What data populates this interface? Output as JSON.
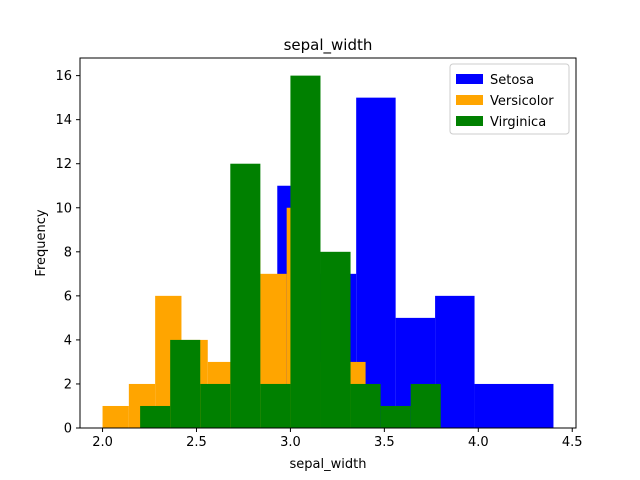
{
  "chart_data": {
    "type": "bar",
    "subtype": "histogram",
    "title": "sepal_width",
    "xlabel": "sepal_width",
    "ylabel": "Frequency",
    "xlim": [
      1.88,
      4.52
    ],
    "ylim": [
      0,
      16.8
    ],
    "xticks": [
      2.0,
      2.5,
      3.0,
      3.5,
      4.0,
      4.5
    ],
    "xtick_labels": [
      "2.0",
      "2.5",
      "3.0",
      "3.5",
      "4.0",
      "4.5"
    ],
    "yticks": [
      0,
      2,
      4,
      6,
      8,
      10,
      12,
      14,
      16
    ],
    "ytick_labels": [
      "0",
      "2",
      "4",
      "6",
      "8",
      "10",
      "12",
      "14",
      "16"
    ],
    "legend_position": "top-right",
    "grid": false,
    "series": [
      {
        "name": "Setosa",
        "color": "#0000ff",
        "bins": [
          {
            "x0": 2.3,
            "x1": 2.51,
            "count": 1
          },
          {
            "x0": 2.51,
            "x1": 2.72,
            "count": 0
          },
          {
            "x0": 2.72,
            "x1": 2.93,
            "count": 0
          },
          {
            "x0": 2.93,
            "x1": 3.14,
            "count": 11
          },
          {
            "x0": 3.14,
            "x1": 3.35,
            "count": 7
          },
          {
            "x0": 3.35,
            "x1": 3.56,
            "count": 15
          },
          {
            "x0": 3.56,
            "x1": 3.77,
            "count": 5
          },
          {
            "x0": 3.77,
            "x1": 3.98,
            "count": 6
          },
          {
            "x0": 3.98,
            "x1": 4.19,
            "count": 2
          },
          {
            "x0": 4.19,
            "x1": 4.4,
            "count": 2
          }
        ]
      },
      {
        "name": "Versicolor",
        "color": "#ffa500",
        "bins": [
          {
            "x0": 2.0,
            "x1": 2.14,
            "count": 1
          },
          {
            "x0": 2.14,
            "x1": 2.28,
            "count": 2
          },
          {
            "x0": 2.28,
            "x1": 2.42,
            "count": 6
          },
          {
            "x0": 2.42,
            "x1": 2.56,
            "count": 4
          },
          {
            "x0": 2.56,
            "x1": 2.7,
            "count": 3
          },
          {
            "x0": 2.7,
            "x1": 2.84,
            "count": 9
          },
          {
            "x0": 2.84,
            "x1": 2.98,
            "count": 7
          },
          {
            "x0": 2.98,
            "x1": 3.12,
            "count": 10
          },
          {
            "x0": 3.12,
            "x1": 3.26,
            "count": 3
          },
          {
            "x0": 3.26,
            "x1": 3.4,
            "count": 3
          }
        ]
      },
      {
        "name": "Virginica",
        "color": "#008000",
        "bins": [
          {
            "x0": 2.2,
            "x1": 2.36,
            "count": 1
          },
          {
            "x0": 2.36,
            "x1": 2.52,
            "count": 4
          },
          {
            "x0": 2.52,
            "x1": 2.68,
            "count": 2
          },
          {
            "x0": 2.68,
            "x1": 2.84,
            "count": 12
          },
          {
            "x0": 2.84,
            "x1": 3.0,
            "count": 2
          },
          {
            "x0": 3.0,
            "x1": 3.16,
            "count": 16
          },
          {
            "x0": 3.16,
            "x1": 3.32,
            "count": 8
          },
          {
            "x0": 3.32,
            "x1": 3.48,
            "count": 2
          },
          {
            "x0": 3.48,
            "x1": 3.64,
            "count": 1
          },
          {
            "x0": 3.64,
            "x1": 3.8,
            "count": 2
          }
        ]
      }
    ]
  }
}
